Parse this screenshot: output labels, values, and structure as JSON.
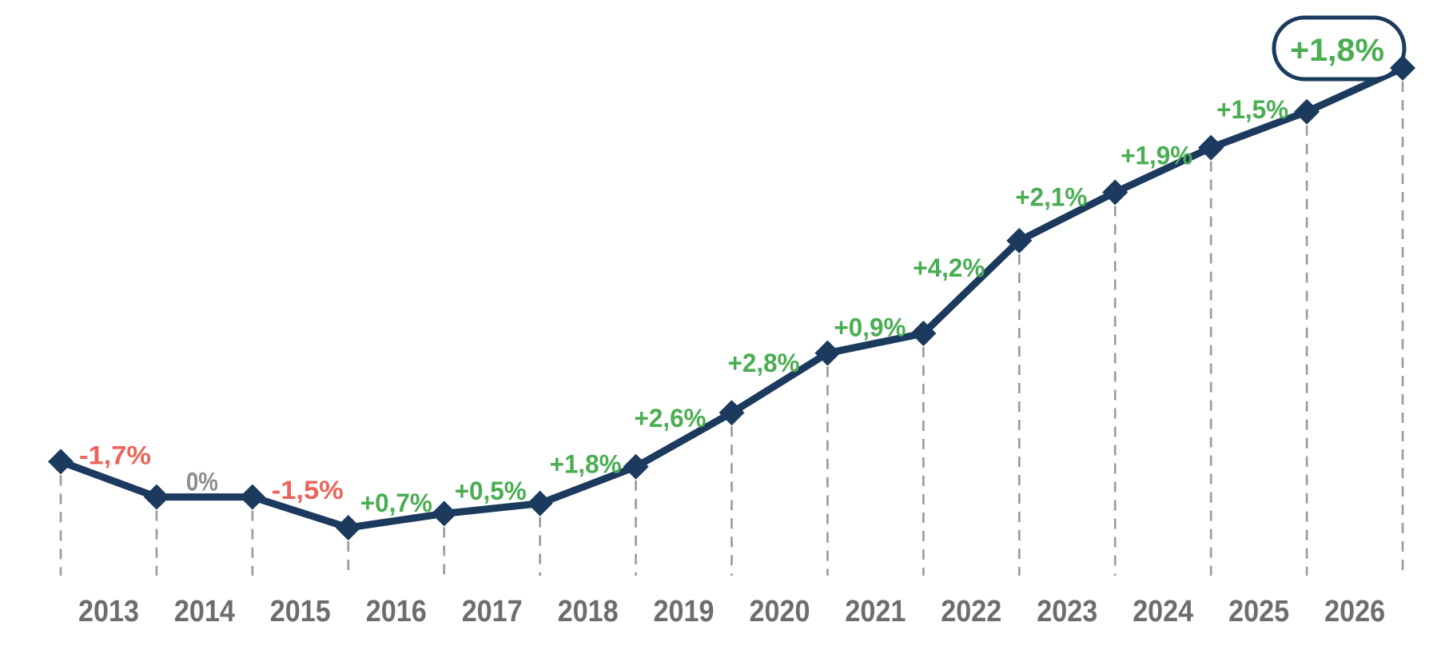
{
  "chart_data": {
    "type": "line",
    "title": "",
    "categories": [
      "2013",
      "2014",
      "2015",
      "2016",
      "2017",
      "2018",
      "2019",
      "2020",
      "2021",
      "2022",
      "2023",
      "2024",
      "2025",
      "2026"
    ],
    "series": [
      {
        "name": "yoy_change_pct",
        "values": [
          -1.7,
          0,
          -1.5,
          0.7,
          0.5,
          1.8,
          2.6,
          2.8,
          0.9,
          4.2,
          2.1,
          1.9,
          1.5,
          1.8
        ]
      }
    ],
    "point_labels": [
      "-1,7%",
      "0%",
      "-1,5%",
      "+0,7%",
      "+0,5%",
      "+1,8%",
      "+2,6%",
      "+2,8%",
      "+0,9%",
      "+4,2%",
      "+2,1%",
      "+1,9%",
      "+1,5%",
      "+1,8%"
    ],
    "final_badge_label": "+1,8%",
    "grid": "vertical-dashed",
    "legend": "none",
    "marker": "diamond",
    "colors": {
      "line": "#1b3a5e",
      "positive_label": "#4aad52",
      "negative_label": "#ec6459",
      "zero_label": "#8d8d8d",
      "year_label": "#6d6d6d",
      "gridline": "#9c9c9c",
      "badge_border": "#1b3a5e",
      "badge_fill": "#ffffff",
      "background": "#ffffff"
    }
  }
}
